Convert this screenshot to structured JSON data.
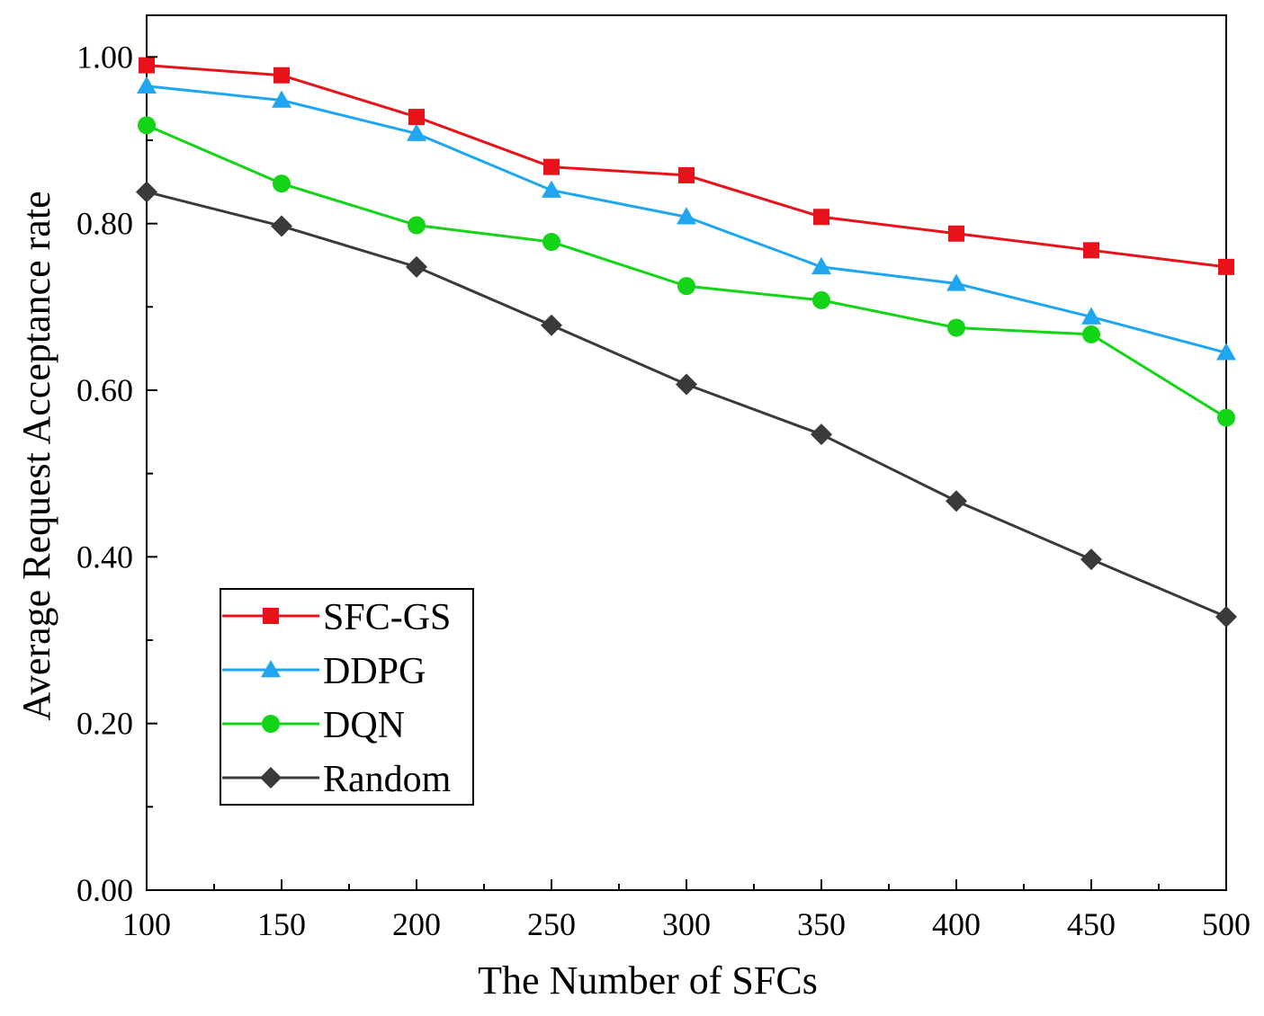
{
  "chart_data": {
    "type": "line",
    "title": "",
    "xlabel": "The Number of SFCs",
    "ylabel": "Average Request Acceptance rate",
    "x": [
      100,
      150,
      200,
      250,
      300,
      350,
      400,
      450,
      500
    ],
    "xlim": [
      100,
      500
    ],
    "ylim": [
      0,
      1.05
    ],
    "xticks": [
      100,
      150,
      200,
      250,
      300,
      350,
      400,
      450,
      500
    ],
    "xtick_labels": [
      "100",
      "150",
      "200",
      "250",
      "300",
      "350",
      "400",
      "450",
      "500"
    ],
    "yticks": [
      0,
      0.2,
      0.4,
      0.6,
      0.8,
      1.0
    ],
    "ytick_labels": [
      "0.00",
      "0.20",
      "0.40",
      "0.60",
      "0.80",
      "1.00"
    ],
    "grid": false,
    "legend_position": "bottom-left",
    "series": [
      {
        "name": "SFC-GS",
        "color": "#e8121b",
        "marker": "square",
        "values": [
          0.99,
          0.978,
          0.928,
          0.868,
          0.858,
          0.808,
          0.788,
          0.768,
          0.748
        ]
      },
      {
        "name": "DDPG",
        "color": "#1ea7f0",
        "marker": "triangle",
        "values": [
          0.965,
          0.948,
          0.908,
          0.84,
          0.808,
          0.748,
          0.728,
          0.688,
          0.645
        ]
      },
      {
        "name": "DQN",
        "color": "#14d417",
        "marker": "circle",
        "values": [
          0.918,
          0.848,
          0.798,
          0.778,
          0.725,
          0.708,
          0.675,
          0.667,
          0.567
        ]
      },
      {
        "name": "Random",
        "color": "#3a3a3a",
        "marker": "diamond",
        "values": [
          0.838,
          0.797,
          0.748,
          0.678,
          0.607,
          0.547,
          0.467,
          0.397,
          0.328
        ]
      }
    ]
  }
}
